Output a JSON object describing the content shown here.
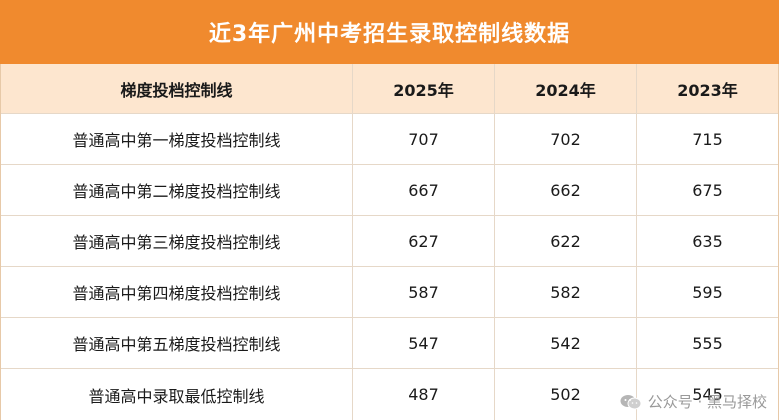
{
  "title": "近3年广州中考招生录取控制线数据",
  "headers": [
    "梯度投档控制线",
    "2025年",
    "2024年",
    "2023年"
  ],
  "rows": [
    [
      "普通高中第一梯度投档控制线",
      "707",
      "702",
      "715"
    ],
    [
      "普通高中第二梯度投档控制线",
      "667",
      "662",
      "675"
    ],
    [
      "普通高中第三梯度投档控制线",
      "627",
      "622",
      "635"
    ],
    [
      "普通高中第四梯度投档控制线",
      "587",
      "582",
      "595"
    ],
    [
      "普通高中第五梯度投档控制线",
      "547",
      "542",
      "555"
    ],
    [
      "普通高中录取最低控制线",
      "487",
      "502",
      "545"
    ]
  ],
  "watermark": {
    "text": "公众号 · 黑马择校",
    "icon": "wechat-icon"
  },
  "colors": {
    "banner": "#f08a2e",
    "header_bg": "#fde6cf",
    "border": "#e6d8c8"
  }
}
